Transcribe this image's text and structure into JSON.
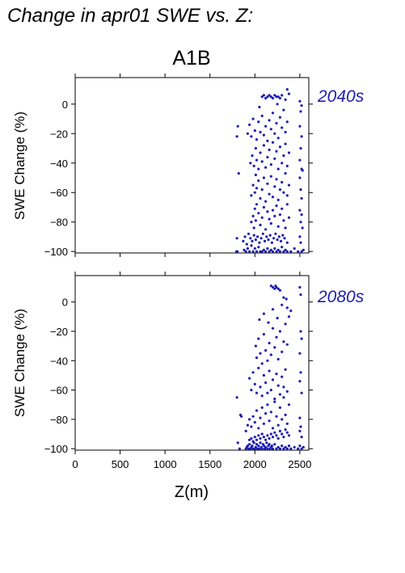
{
  "title": "Change in apr01 SWE vs. Z:",
  "subtitle": "A1B",
  "colors": {
    "points": "#2020b0",
    "period_label": "#2020b0",
    "axes": "#000000"
  },
  "chart_data": [
    {
      "type": "scatter",
      "period_label": "2040s",
      "xlabel": "",
      "ylabel": "SWE Change (%)",
      "xlim": [
        0,
        2600
      ],
      "ylim": [
        -101,
        18
      ],
      "xticks": [
        0,
        500,
        1000,
        1500,
        2000,
        2500
      ],
      "xtick_labels": [],
      "yticks": [
        -100,
        -80,
        -60,
        -40,
        -20,
        0
      ],
      "ytick_labels": [
        "−100",
        "−80",
        "−60",
        "−40",
        "−20",
        "0"
      ],
      "points": [
        [
          1800,
          -22
        ],
        [
          1810,
          -15
        ],
        [
          1820,
          -47
        ],
        [
          1800,
          -91
        ],
        [
          1795,
          -100
        ],
        [
          1805,
          -100
        ],
        [
          1880,
          -99
        ],
        [
          1900,
          -100
        ],
        [
          1920,
          -98
        ],
        [
          1940,
          -100
        ],
        [
          1960,
          -96
        ],
        [
          1980,
          -100
        ],
        [
          2000,
          -98
        ],
        [
          2020,
          -100
        ],
        [
          2040,
          -97
        ],
        [
          2060,
          -100
        ],
        [
          2080,
          -100
        ],
        [
          2100,
          -99
        ],
        [
          2120,
          -100
        ],
        [
          2140,
          -98
        ],
        [
          2160,
          -100
        ],
        [
          2180,
          -99
        ],
        [
          2200,
          -100
        ],
        [
          2220,
          -98
        ],
        [
          2240,
          -100
        ],
        [
          2260,
          -99
        ],
        [
          2280,
          -100
        ],
        [
          2300,
          -97
        ],
        [
          2320,
          -100
        ],
        [
          2340,
          -99
        ],
        [
          2360,
          -100
        ],
        [
          2400,
          -100
        ],
        [
          2440,
          -98
        ],
        [
          2480,
          -100
        ],
        [
          2520,
          -100
        ],
        [
          2540,
          -99
        ],
        [
          1870,
          -93
        ],
        [
          1890,
          -90
        ],
        [
          1910,
          -95
        ],
        [
          1930,
          -88
        ],
        [
          1950,
          -91
        ],
        [
          1970,
          -93
        ],
        [
          1990,
          -89
        ],
        [
          2010,
          -92
        ],
        [
          2030,
          -90
        ],
        [
          2050,
          -94
        ],
        [
          2070,
          -91
        ],
        [
          2090,
          -88
        ],
        [
          2110,
          -93
        ],
        [
          2130,
          -90
        ],
        [
          2150,
          -92
        ],
        [
          2170,
          -89
        ],
        [
          2190,
          -94
        ],
        [
          2210,
          -91
        ],
        [
          2230,
          -88
        ],
        [
          2250,
          -92
        ],
        [
          2270,
          -90
        ],
        [
          2290,
          -93
        ],
        [
          2310,
          -89
        ],
        [
          2330,
          -91
        ],
        [
          2360,
          -94
        ],
        [
          2500,
          -90
        ],
        [
          2510,
          -94
        ],
        [
          1960,
          -80
        ],
        [
          1980,
          -76
        ],
        [
          1990,
          -84
        ],
        [
          2000,
          -71
        ],
        [
          2010,
          -79
        ],
        [
          2020,
          -68
        ],
        [
          2040,
          -74
        ],
        [
          2060,
          -82
        ],
        [
          2080,
          -77
        ],
        [
          2100,
          -70
        ],
        [
          2120,
          -85
        ],
        [
          2140,
          -73
        ],
        [
          2160,
          -78
        ],
        [
          2180,
          -81
        ],
        [
          2200,
          -72
        ],
        [
          2220,
          -76
        ],
        [
          2240,
          -69
        ],
        [
          2260,
          -83
        ],
        [
          2280,
          -75
        ],
        [
          2300,
          -71
        ],
        [
          2320,
          -79
        ],
        [
          2340,
          -84
        ],
        [
          2360,
          -68
        ],
        [
          2380,
          -77
        ],
        [
          2500,
          -72
        ],
        [
          2510,
          -80
        ],
        [
          2520,
          -75
        ],
        [
          2530,
          -84
        ],
        [
          1960,
          -62
        ],
        [
          1980,
          -55
        ],
        [
          2000,
          -60
        ],
        [
          2010,
          -48
        ],
        [
          2020,
          -57
        ],
        [
          2040,
          -52
        ],
        [
          2060,
          -64
        ],
        [
          2080,
          -58
        ],
        [
          2100,
          -50
        ],
        [
          2120,
          -66
        ],
        [
          2140,
          -54
        ],
        [
          2160,
          -61
        ],
        [
          2180,
          -49
        ],
        [
          2200,
          -63
        ],
        [
          2220,
          -56
        ],
        [
          2240,
          -51
        ],
        [
          2260,
          -65
        ],
        [
          2280,
          -58
        ],
        [
          2300,
          -53
        ],
        [
          2320,
          -60
        ],
        [
          2340,
          -47
        ],
        [
          2360,
          -62
        ],
        [
          2380,
          -55
        ],
        [
          2500,
          -50
        ],
        [
          2510,
          -58
        ],
        [
          2520,
          -64
        ],
        [
          2530,
          -45
        ],
        [
          1950,
          -40
        ],
        [
          1970,
          -35
        ],
        [
          1990,
          -42
        ],
        [
          2010,
          -30
        ],
        [
          2020,
          -38
        ],
        [
          2040,
          -44
        ],
        [
          2060,
          -33
        ],
        [
          2080,
          -39
        ],
        [
          2100,
          -28
        ],
        [
          2120,
          -43
        ],
        [
          2140,
          -36
        ],
        [
          2160,
          -31
        ],
        [
          2180,
          -41
        ],
        [
          2200,
          -26
        ],
        [
          2220,
          -37
        ],
        [
          2240,
          -32
        ],
        [
          2260,
          -44
        ],
        [
          2280,
          -29
        ],
        [
          2300,
          -40
        ],
        [
          2320,
          -35
        ],
        [
          2340,
          -27
        ],
        [
          2360,
          -42
        ],
        [
          2380,
          -33
        ],
        [
          2500,
          -38
        ],
        [
          2510,
          -30
        ],
        [
          2520,
          -44
        ],
        [
          1920,
          -20
        ],
        [
          1940,
          -14
        ],
        [
          1960,
          -22
        ],
        [
          1980,
          -10
        ],
        [
          2000,
          -18
        ],
        [
          2020,
          -24
        ],
        [
          2040,
          -12
        ],
        [
          2060,
          -19
        ],
        [
          2080,
          -8
        ],
        [
          2100,
          -21
        ],
        [
          2120,
          -15
        ],
        [
          2140,
          -25
        ],
        [
          2160,
          -11
        ],
        [
          2180,
          -17
        ],
        [
          2200,
          -6
        ],
        [
          2220,
          -20
        ],
        [
          2240,
          -13
        ],
        [
          2260,
          -23
        ],
        [
          2280,
          -9
        ],
        [
          2300,
          -16
        ],
        [
          2320,
          -4
        ],
        [
          2340,
          -19
        ],
        [
          2360,
          -12
        ],
        [
          2500,
          -15
        ],
        [
          2520,
          -22
        ],
        [
          2510,
          -5
        ],
        [
          2080,
          5
        ],
        [
          2100,
          6
        ],
        [
          2120,
          4
        ],
        [
          2140,
          5
        ],
        [
          2160,
          6
        ],
        [
          2180,
          5
        ],
        [
          2200,
          4
        ],
        [
          2220,
          6
        ],
        [
          2240,
          5
        ],
        [
          2260,
          5
        ],
        [
          2280,
          4
        ],
        [
          2300,
          6
        ],
        [
          2360,
          10
        ],
        [
          2380,
          7
        ],
        [
          2340,
          3
        ],
        [
          2500,
          2
        ],
        [
          2520,
          -1
        ],
        [
          2250,
          0
        ],
        [
          2050,
          -2
        ]
      ]
    },
    {
      "type": "scatter",
      "period_label": "2080s",
      "xlabel": "Z(m)",
      "ylabel": "SWE Change (%)",
      "xlim": [
        0,
        2600
      ],
      "ylim": [
        -101,
        18
      ],
      "xticks": [
        0,
        500,
        1000,
        1500,
        2000,
        2500
      ],
      "xtick_labels": [
        "0",
        "500",
        "1000",
        "1500",
        "2000",
        "2500"
      ],
      "yticks": [
        -100,
        -80,
        -60,
        -40,
        -20,
        0
      ],
      "ytick_labels": [
        "−100",
        "−80",
        "−60",
        "−40",
        "−20",
        "0"
      ],
      "points": [
        [
          1800,
          -65
        ],
        [
          1810,
          -96
        ],
        [
          1830,
          -100
        ],
        [
          1840,
          -77
        ],
        [
          1850,
          -78
        ],
        [
          1900,
          -100
        ],
        [
          1910,
          -99
        ],
        [
          1920,
          -98
        ],
        [
          1930,
          -100
        ],
        [
          1940,
          -97
        ],
        [
          1950,
          -100
        ],
        [
          1960,
          -99
        ],
        [
          1970,
          -98
        ],
        [
          1980,
          -100
        ],
        [
          1990,
          -96
        ],
        [
          2000,
          -100
        ],
        [
          2010,
          -99
        ],
        [
          2020,
          -97
        ],
        [
          2030,
          -100
        ],
        [
          2040,
          -98
        ],
        [
          2050,
          -100
        ],
        [
          2060,
          -96
        ],
        [
          2070,
          -99
        ],
        [
          2080,
          -100
        ],
        [
          2090,
          -97
        ],
        [
          2100,
          -98
        ],
        [
          2110,
          -100
        ],
        [
          2120,
          -99
        ],
        [
          2130,
          -96
        ],
        [
          2140,
          -100
        ],
        [
          2150,
          -98
        ],
        [
          2160,
          -97
        ],
        [
          2170,
          -100
        ],
        [
          2180,
          -99
        ],
        [
          2190,
          -98
        ],
        [
          2200,
          -100
        ],
        [
          2220,
          -97
        ],
        [
          2240,
          -100
        ],
        [
          2260,
          -99
        ],
        [
          2280,
          -100
        ],
        [
          2300,
          -98
        ],
        [
          2320,
          -100
        ],
        [
          2340,
          -99
        ],
        [
          2360,
          -100
        ],
        [
          2380,
          -98
        ],
        [
          2400,
          -100
        ],
        [
          2440,
          -99
        ],
        [
          2480,
          -100
        ],
        [
          2500,
          -98
        ],
        [
          2520,
          -100
        ],
        [
          2540,
          -99
        ],
        [
          1940,
          -94
        ],
        [
          1960,
          -93
        ],
        [
          1980,
          -95
        ],
        [
          2000,
          -92
        ],
        [
          2020,
          -94
        ],
        [
          2040,
          -91
        ],
        [
          2060,
          -93
        ],
        [
          2080,
          -90
        ],
        [
          2100,
          -92
        ],
        [
          2120,
          -94
        ],
        [
          2140,
          -91
        ],
        [
          2160,
          -93
        ],
        [
          2180,
          -90
        ],
        [
          2200,
          -92
        ],
        [
          2220,
          -89
        ],
        [
          2240,
          -91
        ],
        [
          2260,
          -93
        ],
        [
          2280,
          -88
        ],
        [
          2300,
          -90
        ],
        [
          2320,
          -92
        ],
        [
          2340,
          -87
        ],
        [
          2360,
          -89
        ],
        [
          2380,
          -91
        ],
        [
          2500,
          -88
        ],
        [
          2520,
          -92
        ],
        [
          1900,
          -88
        ],
        [
          1920,
          -84
        ],
        [
          1940,
          -80
        ],
        [
          1960,
          -85
        ],
        [
          1980,
          -78
        ],
        [
          2000,
          -82
        ],
        [
          2020,
          -74
        ],
        [
          2040,
          -86
        ],
        [
          2060,
          -79
        ],
        [
          2080,
          -72
        ],
        [
          2100,
          -83
        ],
        [
          2120,
          -76
        ],
        [
          2140,
          -70
        ],
        [
          2160,
          -81
        ],
        [
          2180,
          -75
        ],
        [
          2200,
          -86
        ],
        [
          2220,
          -68
        ],
        [
          2240,
          -78
        ],
        [
          2260,
          -84
        ],
        [
          2280,
          -72
        ],
        [
          2300,
          -80
        ],
        [
          2320,
          -65
        ],
        [
          2340,
          -77
        ],
        [
          2360,
          -83
        ],
        [
          2380,
          -70
        ],
        [
          2500,
          -79
        ],
        [
          2510,
          -85
        ],
        [
          1940,
          -52
        ],
        [
          1960,
          -60
        ],
        [
          1980,
          -48
        ],
        [
          2000,
          -56
        ],
        [
          2020,
          -62
        ],
        [
          2040,
          -45
        ],
        [
          2060,
          -58
        ],
        [
          2080,
          -64
        ],
        [
          2100,
          -50
        ],
        [
          2120,
          -55
        ],
        [
          2140,
          -62
        ],
        [
          2160,
          -47
        ],
        [
          2180,
          -60
        ],
        [
          2200,
          -53
        ],
        [
          2220,
          -66
        ],
        [
          2240,
          -49
        ],
        [
          2260,
          -57
        ],
        [
          2280,
          -63
        ],
        [
          2300,
          -51
        ],
        [
          2320,
          -58
        ],
        [
          2340,
          -46
        ],
        [
          2360,
          -61
        ],
        [
          2500,
          -54
        ],
        [
          2510,
          -48
        ],
        [
          2520,
          -62
        ],
        [
          2010,
          -30
        ],
        [
          2020,
          -38
        ],
        [
          2040,
          -25
        ],
        [
          2060,
          -35
        ],
        [
          2080,
          -42
        ],
        [
          2100,
          -22
        ],
        [
          2120,
          -33
        ],
        [
          2140,
          -40
        ],
        [
          2160,
          -28
        ],
        [
          2180,
          -36
        ],
        [
          2200,
          -18
        ],
        [
          2220,
          -31
        ],
        [
          2240,
          -24
        ],
        [
          2260,
          -39
        ],
        [
          2280,
          -20
        ],
        [
          2300,
          -34
        ],
        [
          2320,
          -27
        ],
        [
          2340,
          -15
        ],
        [
          2360,
          -29
        ],
        [
          2380,
          -10
        ],
        [
          2500,
          -35
        ],
        [
          2520,
          -25
        ],
        [
          2510,
          -20
        ],
        [
          2050,
          -12
        ],
        [
          2100,
          -8
        ],
        [
          2150,
          -14
        ],
        [
          2200,
          -5
        ],
        [
          2250,
          -11
        ],
        [
          2300,
          -2
        ],
        [
          2350,
          2
        ],
        [
          2200,
          10
        ],
        [
          2220,
          9
        ],
        [
          2240,
          10
        ],
        [
          2260,
          9
        ],
        [
          2280,
          8
        ],
        [
          2320,
          3
        ],
        [
          2360,
          -4
        ],
        [
          2400,
          -6
        ],
        [
          2500,
          10
        ],
        [
          2510,
          5
        ],
        [
          2180,
          11
        ],
        [
          2230,
          11
        ]
      ]
    }
  ]
}
